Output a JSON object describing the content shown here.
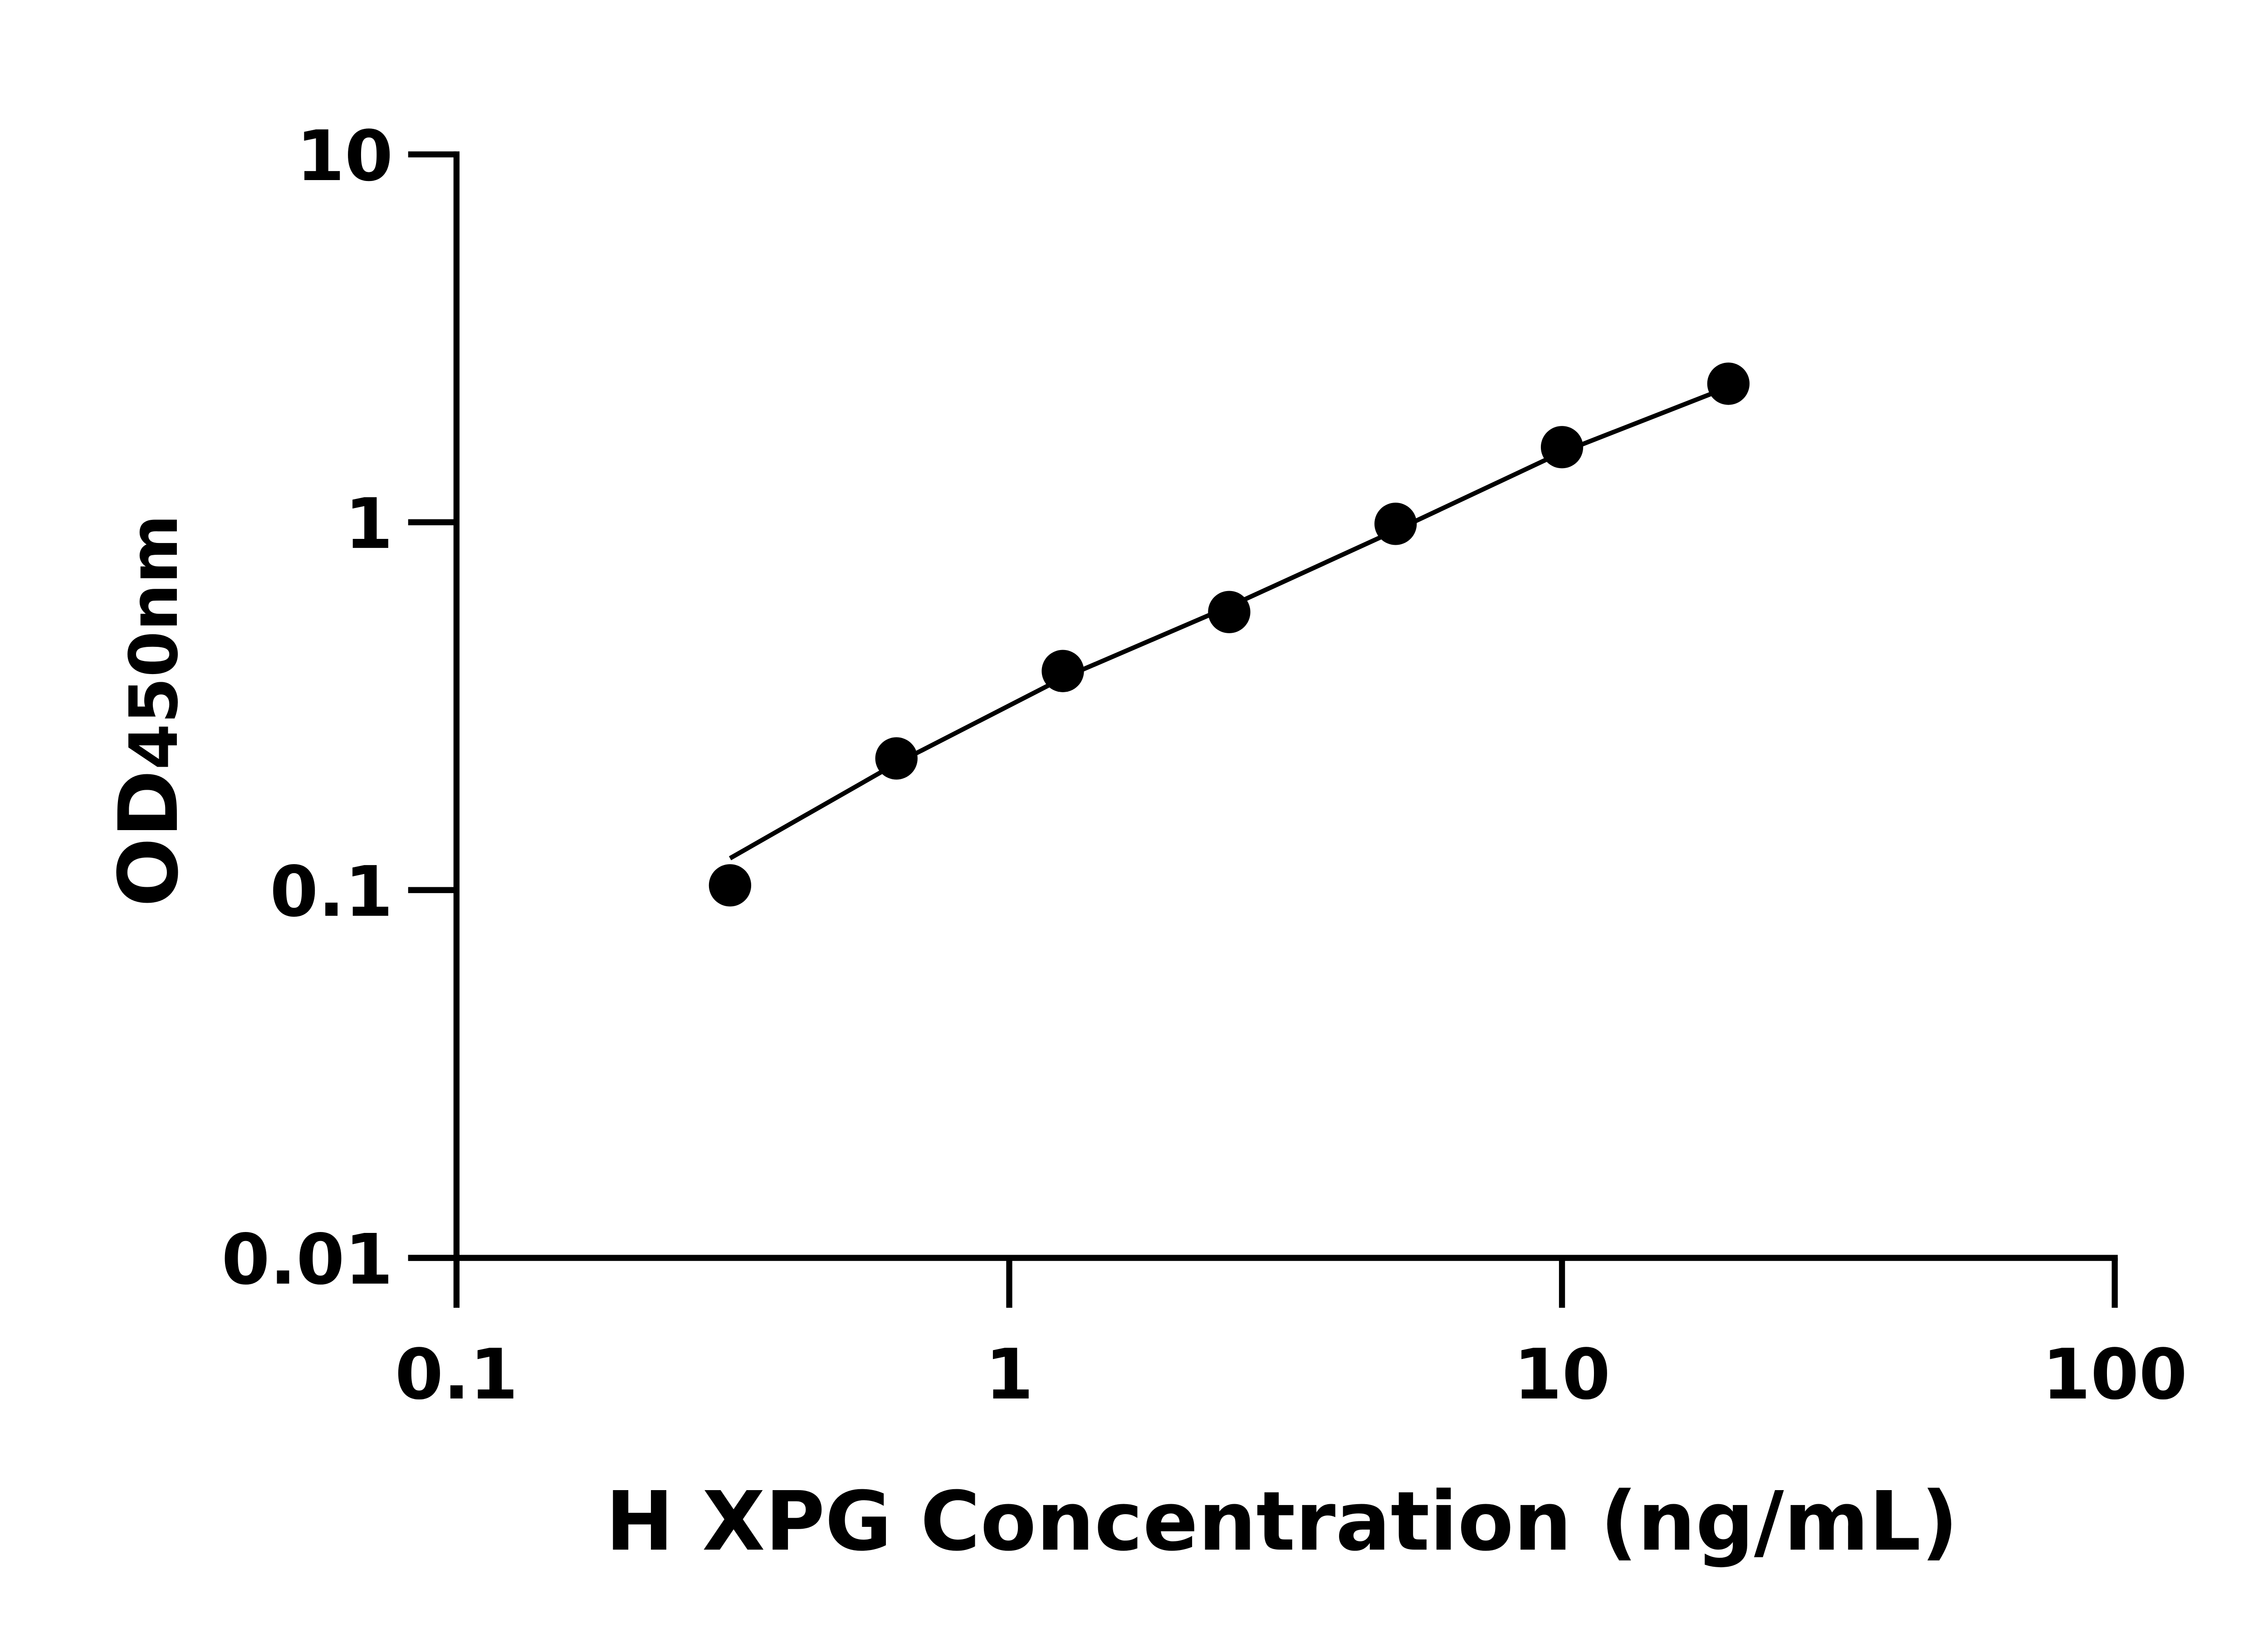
{
  "chart_data": {
    "type": "scatter",
    "title": "",
    "xlabel": "H XPG Concentration (ng/mL)",
    "ylabel_main": "OD",
    "ylabel_sub": "450nm",
    "x_scale": "log",
    "y_scale": "log",
    "xlim": [
      0.1,
      100
    ],
    "ylim": [
      0.01,
      10
    ],
    "x_ticks": [
      "0.1",
      "1",
      "10",
      "100"
    ],
    "y_ticks": [
      "0.01",
      "0.1",
      "1",
      "10"
    ],
    "grid": false,
    "legend": "none",
    "color": "#000000",
    "series": [
      {
        "x": [
          0.3125,
          0.625,
          1.25,
          2.5,
          5,
          10,
          20
        ],
        "y": [
          0.103,
          0.228,
          0.394,
          0.57,
          0.99,
          1.6,
          2.38
        ]
      }
    ],
    "fit_curve": {
      "x": [
        0.3125,
        0.625,
        1.25,
        2.5,
        5,
        10,
        20
      ],
      "y": [
        0.122,
        0.221,
        0.377,
        0.59,
        0.95,
        1.55,
        2.33
      ]
    }
  }
}
